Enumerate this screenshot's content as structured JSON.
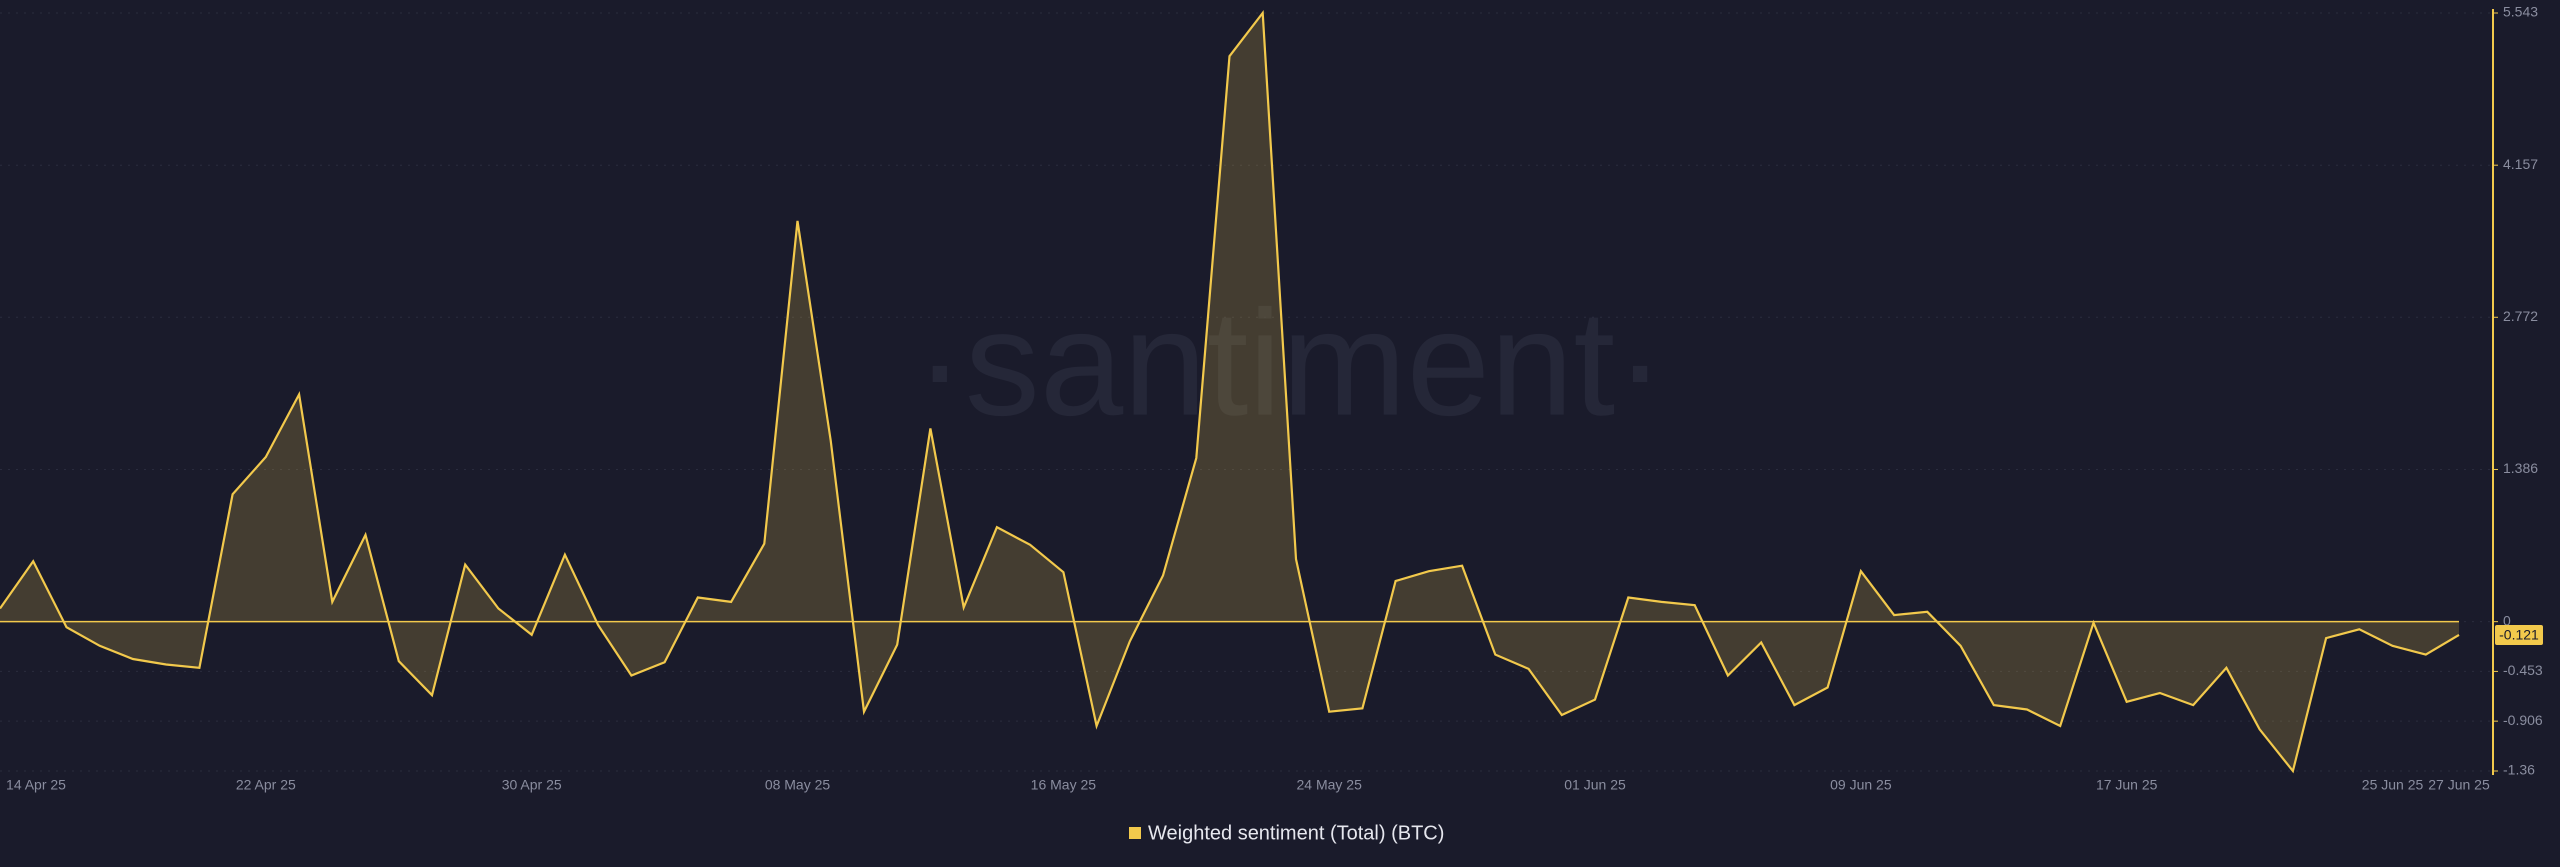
{
  "chart_data": {
    "type": "area",
    "watermark": "·santiment·",
    "categories": [
      "14 Apr 25",
      null,
      null,
      null,
      null,
      null,
      null,
      null,
      "22 Apr 25",
      null,
      null,
      null,
      null,
      null,
      null,
      null,
      "30 Apr 25",
      null,
      null,
      null,
      null,
      null,
      null,
      null,
      "08 May 25",
      null,
      null,
      null,
      null,
      null,
      null,
      null,
      "16 May 25",
      null,
      null,
      null,
      null,
      null,
      null,
      null,
      "24 May 25",
      null,
      null,
      null,
      null,
      null,
      null,
      null,
      "01 Jun 25",
      null,
      null,
      null,
      null,
      null,
      null,
      null,
      "09 Jun 25",
      null,
      null,
      null,
      null,
      null,
      null,
      null,
      "17 Jun 25",
      null,
      null,
      null,
      null,
      null,
      null,
      null,
      "25 Jun 25",
      null,
      "27 Jun 25"
    ],
    "series": [
      {
        "name": "Weighted sentiment (Total) (BTC)",
        "color": "#f2c94c",
        "values": [
          0.12,
          0.55,
          -0.05,
          -0.22,
          -0.34,
          -0.39,
          -0.42,
          1.16,
          1.5,
          2.07,
          0.18,
          0.79,
          -0.36,
          -0.67,
          0.52,
          0.12,
          -0.12,
          0.61,
          -0.03,
          -0.49,
          -0.37,
          0.22,
          0.18,
          0.71,
          3.65,
          1.65,
          -0.82,
          -0.21,
          1.76,
          0.13,
          0.86,
          0.7,
          0.45,
          -0.95,
          -0.18,
          0.42,
          1.49,
          5.15,
          5.543,
          0.57,
          -0.82,
          -0.79,
          0.37,
          0.46,
          0.51,
          -0.3,
          -0.43,
          -0.85,
          -0.71,
          0.22,
          0.18,
          0.15,
          -0.49,
          -0.19,
          -0.76,
          -0.6,
          0.46,
          0.06,
          0.09,
          -0.22,
          -0.76,
          -0.8,
          -0.95,
          -0.01,
          -0.73,
          -0.65,
          -0.76,
          -0.42,
          -0.98,
          -1.36,
          -0.15,
          -0.07,
          -0.22,
          -0.3,
          -0.121
        ]
      }
    ],
    "ylim": [
      -1.36,
      5.543
    ],
    "yticks": [
      -1.36,
      -0.906,
      -0.453,
      0,
      1.386,
      2.772,
      4.157,
      5.543
    ],
    "grid": true
  }
}
